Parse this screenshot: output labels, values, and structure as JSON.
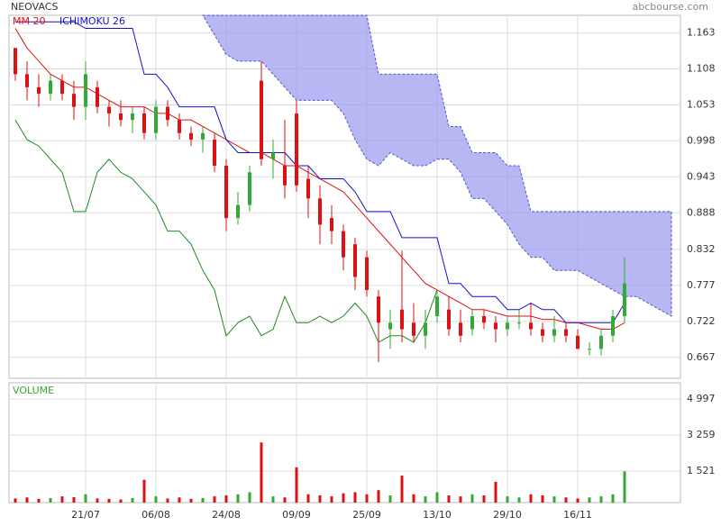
{
  "chart_data": [
    {
      "type": "candlestick",
      "title": "NEOVACS",
      "source": "abcbourse.com",
      "up_color": "#33aa33",
      "down_color": "#dd1111",
      "open": [
        1.14,
        1.1,
        1.08,
        1.07,
        1.09,
        1.07,
        1.05,
        1.08,
        1.05,
        1.04,
        1.03,
        1.04,
        1.01,
        1.05,
        1.03,
        1.01,
        1.0,
        1.0,
        0.96,
        0.88,
        0.9,
        1.09,
        0.97,
        0.96,
        1.04,
        0.94,
        0.91,
        0.88,
        0.86,
        0.84,
        0.82,
        0.76,
        0.71,
        0.74,
        0.72,
        0.7,
        0.73,
        0.74,
        0.72,
        0.71,
        0.73,
        0.72,
        0.71,
        0.72,
        0.72,
        0.71,
        0.7,
        0.71,
        0.7,
        0.68,
        0.68,
        0.7,
        0.73,
        null,
        null,
        null,
        null
      ],
      "high": [
        1.14,
        1.12,
        1.1,
        1.1,
        1.1,
        1.09,
        1.12,
        1.09,
        1.06,
        1.06,
        1.05,
        1.05,
        1.06,
        1.06,
        1.04,
        1.02,
        1.02,
        1.01,
        0.97,
        0.92,
        0.96,
        1.12,
        1.0,
        1.03,
        1.06,
        0.96,
        0.93,
        0.9,
        0.87,
        0.85,
        0.83,
        0.77,
        0.74,
        0.83,
        0.75,
        0.74,
        0.77,
        0.76,
        0.74,
        0.74,
        0.74,
        0.73,
        0.73,
        0.74,
        0.75,
        0.72,
        0.73,
        0.72,
        0.71,
        0.69,
        0.71,
        0.74,
        0.82,
        null,
        null,
        null,
        null
      ],
      "low": [
        1.09,
        1.06,
        1.05,
        1.06,
        1.06,
        1.03,
        1.03,
        1.04,
        1.02,
        1.02,
        1.01,
        1.0,
        1.0,
        1.02,
        1.0,
        0.99,
        0.98,
        0.95,
        0.86,
        0.87,
        0.89,
        0.96,
        0.94,
        0.91,
        0.92,
        0.88,
        0.84,
        0.84,
        0.8,
        0.77,
        0.76,
        0.66,
        0.68,
        0.69,
        0.69,
        0.68,
        0.72,
        0.7,
        0.69,
        0.7,
        0.71,
        0.69,
        0.7,
        0.71,
        0.7,
        0.69,
        0.69,
        0.69,
        0.68,
        0.67,
        0.67,
        0.69,
        0.72,
        null,
        null,
        null,
        null
      ],
      "close": [
        1.1,
        1.08,
        1.07,
        1.09,
        1.07,
        1.05,
        1.1,
        1.05,
        1.04,
        1.03,
        1.04,
        1.01,
        1.05,
        1.03,
        1.01,
        1.0,
        1.01,
        0.96,
        0.88,
        0.9,
        0.95,
        0.97,
        0.98,
        0.93,
        0.93,
        0.91,
        0.87,
        0.86,
        0.82,
        0.79,
        0.77,
        0.72,
        0.72,
        0.71,
        0.7,
        0.72,
        0.76,
        0.71,
        0.7,
        0.73,
        0.72,
        0.71,
        0.72,
        0.72,
        0.71,
        0.7,
        0.71,
        0.7,
        0.68,
        0.68,
        0.7,
        0.73,
        0.78,
        null,
        null,
        null,
        null
      ],
      "series": [
        {
          "name": "MM 20",
          "color": "#dd1111",
          "values": [
            1.17,
            1.14,
            1.12,
            1.1,
            1.09,
            1.08,
            1.08,
            1.07,
            1.06,
            1.05,
            1.05,
            1.05,
            1.04,
            1.04,
            1.03,
            1.03,
            1.02,
            1.01,
            1.0,
            0.99,
            0.98,
            0.98,
            0.97,
            0.96,
            0.96,
            0.95,
            0.94,
            0.93,
            0.92,
            0.9,
            0.88,
            0.86,
            0.84,
            0.82,
            0.8,
            0.78,
            0.77,
            0.76,
            0.75,
            0.74,
            0.74,
            0.735,
            0.73,
            0.73,
            0.73,
            0.725,
            0.725,
            0.72,
            0.72,
            0.715,
            0.71,
            0.71,
            0.72,
            null,
            null,
            null,
            null
          ]
        },
        {
          "name": "ICHIMOKU 26",
          "color": "#1111cc",
          "values": [
            1.18,
            1.18,
            1.18,
            1.18,
            1.18,
            1.18,
            1.17,
            1.17,
            1.17,
            1.17,
            1.17,
            1.1,
            1.1,
            1.08,
            1.05,
            1.05,
            1.05,
            1.05,
            1.0,
            0.98,
            0.98,
            0.98,
            0.98,
            0.98,
            0.96,
            0.96,
            0.94,
            0.94,
            0.94,
            0.92,
            0.89,
            0.89,
            0.89,
            0.85,
            0.85,
            0.85,
            0.85,
            0.78,
            0.78,
            0.76,
            0.76,
            0.76,
            0.74,
            0.74,
            0.75,
            0.74,
            0.74,
            0.72,
            0.72,
            0.72,
            0.72,
            0.72,
            0.75,
            null,
            null,
            null,
            null
          ]
        }
      ],
      "lagging": {
        "color": "#228822",
        "values": [
          1.03,
          1.0,
          0.99,
          0.97,
          0.95,
          0.89,
          0.89,
          0.95,
          0.97,
          0.95,
          0.94,
          0.92,
          0.9,
          0.86,
          0.86,
          0.84,
          0.8,
          0.77,
          0.7,
          0.72,
          0.73,
          0.7,
          0.71,
          0.76,
          0.72,
          0.72,
          0.73,
          0.72,
          0.73,
          0.75,
          0.73,
          0.69,
          0.7,
          0.7,
          0.69,
          0.72,
          0.77,
          null,
          null,
          null,
          null,
          null,
          null,
          null,
          null,
          null,
          null,
          null,
          null,
          null,
          null,
          null,
          null,
          null,
          null,
          null,
          null
        ]
      },
      "cloud": {
        "color": "#9999ee",
        "upper": [
          null,
          null,
          null,
          null,
          null,
          null,
          null,
          null,
          null,
          null,
          null,
          null,
          null,
          null,
          null,
          null,
          1.19,
          1.19,
          1.19,
          1.19,
          1.19,
          1.19,
          1.19,
          1.19,
          1.19,
          1.19,
          1.19,
          1.19,
          1.19,
          1.19,
          1.19,
          1.1,
          1.1,
          1.1,
          1.1,
          1.1,
          1.1,
          1.02,
          1.02,
          0.98,
          0.98,
          0.98,
          0.96,
          0.96,
          0.89,
          0.89,
          0.89,
          0.89,
          0.89,
          0.89,
          0.89,
          0.89,
          0.89,
          0.89,
          0.89,
          0.89,
          0.89
        ],
        "lower": [
          null,
          null,
          null,
          null,
          null,
          null,
          null,
          null,
          null,
          null,
          null,
          null,
          null,
          null,
          null,
          null,
          1.19,
          1.16,
          1.13,
          1.12,
          1.12,
          1.12,
          1.1,
          1.08,
          1.06,
          1.06,
          1.06,
          1.06,
          1.04,
          1.0,
          0.97,
          0.96,
          0.98,
          0.97,
          0.96,
          0.96,
          0.97,
          0.97,
          0.95,
          0.91,
          0.91,
          0.89,
          0.87,
          0.84,
          0.82,
          0.82,
          0.8,
          0.8,
          0.8,
          0.79,
          0.78,
          0.77,
          0.76,
          0.76,
          0.75,
          0.74,
          0.73
        ]
      },
      "ylim": [
        0.635,
        1.19
      ],
      "yticks": [
        0.667,
        0.722,
        0.777,
        0.832,
        0.888,
        0.943,
        0.998,
        1.053,
        1.108,
        1.163
      ],
      "grid": true
    },
    {
      "type": "bar",
      "title": "VOLUME",
      "categories": [
        null,
        null,
        null,
        null,
        null,
        null,
        "21/07",
        null,
        null,
        null,
        null,
        null,
        "06/08",
        null,
        null,
        null,
        null,
        null,
        "24/08",
        null,
        null,
        null,
        null,
        null,
        "09/09",
        null,
        null,
        null,
        null,
        null,
        "25/09",
        null,
        null,
        null,
        null,
        null,
        "13/10",
        null,
        null,
        null,
        null,
        null,
        "29/10",
        null,
        null,
        null,
        null,
        null,
        "16/11",
        null,
        null,
        null,
        null,
        null,
        null,
        null,
        null
      ],
      "values": [
        200,
        250,
        180,
        220,
        300,
        260,
        400,
        200,
        180,
        150,
        220,
        1100,
        300,
        200,
        250,
        180,
        220,
        300,
        350,
        400,
        500,
        2900,
        300,
        250,
        1700,
        400,
        350,
        300,
        450,
        500,
        400,
        600,
        350,
        1300,
        400,
        300,
        500,
        350,
        300,
        400,
        350,
        1000,
        300,
        250,
        400,
        350,
        300,
        250,
        200,
        250,
        300,
        400,
        1500,
        null,
        null,
        null,
        null
      ],
      "ylim": [
        0,
        5779
      ],
      "yticks": [
        {
          "value": 1521,
          "label": "1 521"
        },
        {
          "value": 3259,
          "label": "3 259"
        },
        {
          "value": 4997,
          "label": "4 997"
        }
      ],
      "grid": true
    }
  ]
}
